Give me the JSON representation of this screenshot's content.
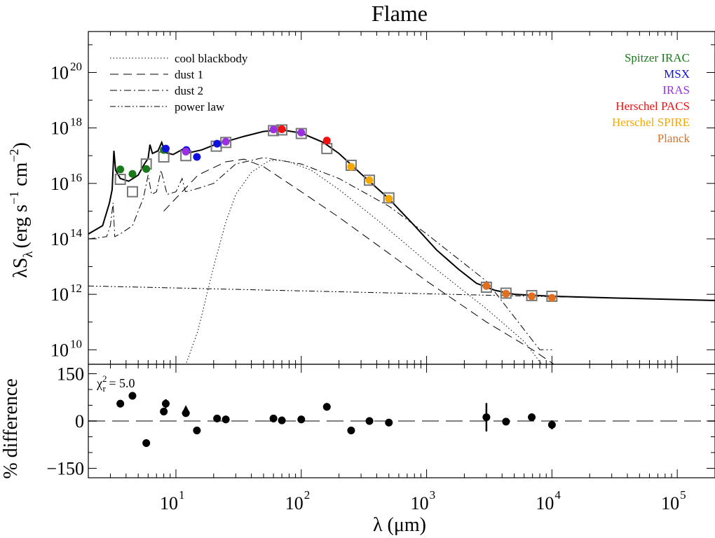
{
  "chart_data": [
    {
      "type": "scatter",
      "title": "Flame",
      "xlabel": "λ (μm)",
      "ylabel": "λS",
      "ylabel_sub": "λ",
      "ylabel_units": "(erg s",
      "ylabel_units_exp1": "−1",
      "ylabel_units_mid": " cm",
      "ylabel_units_exp2": "−2",
      "ylabel_units_end": ")",
      "x_scale": "log",
      "y_scale": "log",
      "xlim": [
        2,
        200000
      ],
      "ylim": [
        3000000000.0,
        3e+21
      ],
      "x_ticks": [
        {
          "value": 10,
          "base": "10",
          "exp": "1"
        },
        {
          "value": 100,
          "base": "10",
          "exp": "2"
        },
        {
          "value": 1000,
          "base": "10",
          "exp": "3"
        },
        {
          "value": 10000,
          "base": "10",
          "exp": "4"
        },
        {
          "value": 100000,
          "base": "10",
          "exp": "5"
        }
      ],
      "y_ticks": [
        {
          "value": 10000000000.0,
          "base": "10",
          "exp": "10"
        },
        {
          "value": 1000000000000.0,
          "base": "10",
          "exp": "12"
        },
        {
          "value": 100000000000000.0,
          "base": "10",
          "exp": "14"
        },
        {
          "value": 1e+16,
          "base": "10",
          "exp": "16"
        },
        {
          "value": 1e+18,
          "base": "10",
          "exp": "18"
        },
        {
          "value": 1e+20,
          "base": "10",
          "exp": "20"
        }
      ],
      "legend_position": "top-left",
      "legend": [
        {
          "label": "cool blackbody",
          "style": "dotted"
        },
        {
          "label": "dust 1",
          "style": "dashed"
        },
        {
          "label": "dust 2",
          "style": "dash-dot"
        },
        {
          "label": "power law",
          "style": "dash-dot-dot"
        }
      ],
      "instrument_legend_position": "top-right",
      "instruments": [
        {
          "name": "Spitzer IRAC",
          "color": "#1a7a1a"
        },
        {
          "name": "MSX",
          "color": "#1010e0"
        },
        {
          "name": "IRAS",
          "color": "#9b30e0"
        },
        {
          "name": "Herschel PACS",
          "color": "#f01010"
        },
        {
          "name": "Herschel SPIRE",
          "color": "#f5a800"
        },
        {
          "name": "Planck",
          "color": "#e07020"
        }
      ],
      "observed": [
        {
          "x": 3.6,
          "y": 3.2e+16,
          "inst": 0
        },
        {
          "x": 4.5,
          "y": 2.2e+16,
          "inst": 0
        },
        {
          "x": 5.8,
          "y": 3.3e+16,
          "inst": 0
        },
        {
          "x": 8.0,
          "y": 1.6e+17,
          "inst": 0
        },
        {
          "x": 8.3,
          "y": 1.8e+17,
          "inst": 1
        },
        {
          "x": 12.1,
          "y": 1.6e+17,
          "inst": 1
        },
        {
          "x": 14.7,
          "y": 9e+16,
          "inst": 1
        },
        {
          "x": 21.3,
          "y": 2.7e+17,
          "inst": 1
        },
        {
          "x": 12.0,
          "y": 1.4e+17,
          "inst": 2
        },
        {
          "x": 25.0,
          "y": 3.2e+17,
          "inst": 2
        },
        {
          "x": 60.0,
          "y": 8.8e+17,
          "inst": 2
        },
        {
          "x": 100.0,
          "y": 6.8e+17,
          "inst": 2
        },
        {
          "x": 70.0,
          "y": 9e+17,
          "inst": 3
        },
        {
          "x": 160.0,
          "y": 3.5e+17,
          "inst": 3
        },
        {
          "x": 250.0,
          "y": 4e+16,
          "inst": 4
        },
        {
          "x": 350.0,
          "y": 1.3e+16,
          "inst": 4
        },
        {
          "x": 500.0,
          "y": 2800000000000000.0,
          "inst": 4
        },
        {
          "x": 3000.0,
          "y": 2000000000000.0,
          "inst": 5
        },
        {
          "x": 4300.0,
          "y": 1050000000000.0,
          "inst": 5
        },
        {
          "x": 6900.0,
          "y": 850000000000.0,
          "inst": 5
        },
        {
          "x": 10000.0,
          "y": 750000000000.0,
          "inst": 5
        }
      ],
      "model_points": [
        {
          "x": 3.6,
          "y": 1.4e+16
        },
        {
          "x": 4.5,
          "y": 5000000000000000.0
        },
        {
          "x": 5.8,
          "y": 5e+16
        },
        {
          "x": 8.0,
          "y": 9e+16
        },
        {
          "x": 12.0,
          "y": 1e+17
        },
        {
          "x": 21.0,
          "y": 2.2e+17
        },
        {
          "x": 25.0,
          "y": 3e+17
        },
        {
          "x": 60.0,
          "y": 8e+17
        },
        {
          "x": 70.0,
          "y": 8.5e+17
        },
        {
          "x": 100.0,
          "y": 6.3e+17
        },
        {
          "x": 160.0,
          "y": 1.8e+17
        },
        {
          "x": 250.0,
          "y": 4.5e+16
        },
        {
          "x": 350.0,
          "y": 1.3e+16
        },
        {
          "x": 500.0,
          "y": 3000000000000000.0
        },
        {
          "x": 3000.0,
          "y": 1800000000000.0
        },
        {
          "x": 4300.0,
          "y": 1100000000000.0
        },
        {
          "x": 6900.0,
          "y": 900000000000.0
        },
        {
          "x": 10000.0,
          "y": 850000000000.0
        }
      ],
      "total_model": [
        [
          2,
          150000000000000.0
        ],
        [
          2.6,
          300000000000000.0
        ],
        [
          2.95,
          2000000000000000.0
        ],
        [
          3.1,
          6000000000000000.0
        ],
        [
          3.2,
          1.5e+17
        ],
        [
          3.3,
          3e+16
        ],
        [
          3.6,
          1.5e+16
        ],
        [
          4.2,
          1.2e+16
        ],
        [
          5.0,
          2e+16
        ],
        [
          5.6,
          5e+16
        ],
        [
          6.0,
          8e+16
        ],
        [
          6.2,
          2.5e+17
        ],
        [
          6.5,
          1.2e+17
        ],
        [
          7.2,
          1.5e+17
        ],
        [
          7.7,
          3e+17
        ],
        [
          8.2,
          1.3e+17
        ],
        [
          9.5,
          1.1e+17
        ],
        [
          11.3,
          1.7e+17
        ],
        [
          11.9,
          1.2e+17
        ],
        [
          13,
          1.3e+17
        ],
        [
          16,
          1.6e+17
        ],
        [
          20,
          2.4e+17
        ],
        [
          25,
          3.2e+17
        ],
        [
          35,
          5e+17
        ],
        [
          50,
          7.5e+17
        ],
        [
          70,
          8.5e+17
        ],
        [
          100,
          6.5e+17
        ],
        [
          150,
          3e+17
        ],
        [
          200,
          1.2e+17
        ],
        [
          300,
          2.2e+16
        ],
        [
          500,
          2800000000000000.0
        ],
        [
          800,
          300000000000000.0
        ],
        [
          1200,
          40000000000000.0
        ],
        [
          1800,
          8000000000000.0
        ],
        [
          2500,
          2500000000000.0
        ],
        [
          3500,
          1400000000000.0
        ],
        [
          5000,
          1000000000000.0
        ],
        [
          10000,
          850000000000.0
        ],
        [
          50000,
          700000000000.0
        ],
        [
          200000,
          600000000000.0
        ]
      ],
      "cool_blackbody": [
        [
          11,
          1000000000.0
        ],
        [
          13,
          8000000000.0
        ],
        [
          15,
          50000000000.0
        ],
        [
          20,
          10000000000000.0
        ],
        [
          25,
          400000000000000.0
        ],
        [
          30,
          4000000000000000.0
        ],
        [
          40,
          2.5e+16
        ],
        [
          55,
          6.5e+16
        ],
        [
          65,
          7e+16
        ],
        [
          80,
          6e+16
        ],
        [
          120,
          3e+16
        ],
        [
          200,
          6000000000000000.0
        ],
        [
          400,
          500000000000000.0
        ],
        [
          1000,
          15000000000000.0
        ],
        [
          3000,
          300000000000.0
        ],
        [
          6000,
          20000000000.0
        ],
        [
          10000,
          1000000000.0
        ]
      ],
      "dust1": [
        [
          8,
          1000000000000000.0
        ],
        [
          15,
          2e+16
        ],
        [
          25,
          6e+16
        ],
        [
          35,
          7.5e+16
        ],
        [
          50,
          4e+16
        ],
        [
          100,
          5000000000000000.0
        ],
        [
          200,
          600000000000000.0
        ],
        [
          500,
          30000000000000.0
        ],
        [
          1000,
          3000000000000.0
        ],
        [
          3000,
          100000000000.0
        ],
        [
          7000,
          10000000000.0
        ],
        [
          13000,
          1500000000.0
        ]
      ],
      "dust2": [
        [
          2,
          100000000000000.0
        ],
        [
          2.8,
          120000000000000.0
        ],
        [
          3.0,
          300000000000000.0
        ],
        [
          3.15,
          2000000000000000.0
        ],
        [
          3.25,
          120000000000000.0
        ],
        [
          3.6,
          150000000000000.0
        ],
        [
          4.5,
          300000000000000.0
        ],
        [
          5.5,
          3000000000000000.0
        ],
        [
          6.0,
          2e+16
        ],
        [
          6.4,
          4000000000000000.0
        ],
        [
          7.0,
          5000000000000000.0
        ],
        [
          7.6,
          3e+16
        ],
        [
          8.5,
          4000000000000000.0
        ],
        [
          10,
          5000000000000000.0
        ],
        [
          11.2,
          1.5e+16
        ],
        [
          11.9,
          5000000000000000.0
        ],
        [
          14,
          6000000000000000.0
        ],
        [
          20,
          1e+16
        ],
        [
          30,
          5e+16
        ],
        [
          50,
          8.5e+16
        ],
        [
          100,
          5e+16
        ],
        [
          200,
          1.5e+16
        ],
        [
          500,
          1500000000000000.0
        ],
        [
          1000,
          150000000000000.0
        ],
        [
          3000,
          3000000000000.0
        ],
        [
          8000,
          10000000000.0
        ],
        [
          10000,
          10000000000.0
        ]
      ],
      "power_law": [
        [
          2,
          2000000000000.0
        ],
        [
          200000,
          600000000000.0
        ]
      ]
    },
    {
      "type": "scatter",
      "ylabel": "% difference",
      "chi_label": "χ",
      "chi_sup": "2",
      "chi_sub": "r",
      "chi_value": " = 5.0",
      "ylim": [
        -180,
        180
      ],
      "y_ticks": [
        "150",
        "0",
        "−150"
      ],
      "points": [
        {
          "x": 3.6,
          "y": 55,
          "err": 12
        },
        {
          "x": 4.5,
          "y": 80,
          "err": 12
        },
        {
          "x": 5.8,
          "y": -70,
          "err": 12
        },
        {
          "x": 8.0,
          "y": 30,
          "err": 12
        },
        {
          "x": 8.3,
          "y": 55,
          "err": 14
        },
        {
          "x": 12.0,
          "y": 25,
          "err": 12
        },
        {
          "x": 14.7,
          "y": -30,
          "err": 12
        },
        {
          "x": 21.3,
          "y": 8,
          "err": 12
        },
        {
          "x": 25.0,
          "y": 5,
          "err": 12
        },
        {
          "x": 60.0,
          "y": 8,
          "err": 12
        },
        {
          "x": 70.0,
          "y": 2,
          "err": 12
        },
        {
          "x": 100.0,
          "y": 5,
          "err": 12
        },
        {
          "x": 160.0,
          "y": 45,
          "err": 12
        },
        {
          "x": 250.0,
          "y": -30,
          "err": 12
        },
        {
          "x": 350.0,
          "y": 0,
          "err": 12
        },
        {
          "x": 500.0,
          "y": -5,
          "err": 12
        },
        {
          "x": 3000.0,
          "y": 12,
          "err": 45
        },
        {
          "x": 4300.0,
          "y": -2,
          "err": 12
        },
        {
          "x": 6900.0,
          "y": 12,
          "err": 12
        },
        {
          "x": 10000.0,
          "y": -12,
          "err": 14
        }
      ],
      "triangles": [
        {
          "x": 12.0,
          "y": 35
        }
      ],
      "zero_line": 0
    }
  ]
}
